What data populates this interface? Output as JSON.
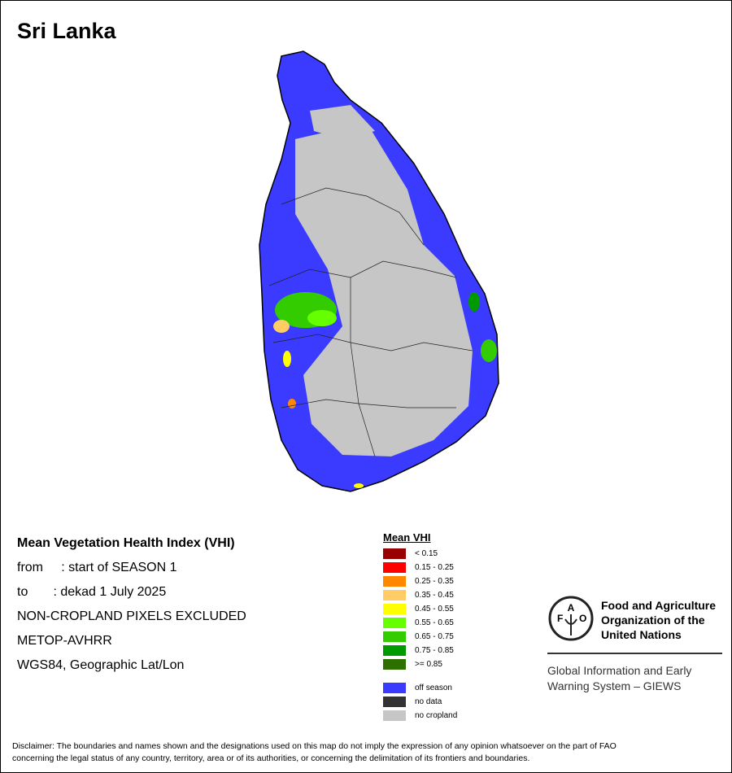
{
  "title": "Sri Lanka",
  "info": {
    "heading": "Mean Vegetation Health Index (VHI)",
    "from": "from     : start of SEASON 1",
    "to": "to       : dekad 1 July 2025",
    "mask": "NON-CROPLAND PIXELS EXCLUDED",
    "sensor": "METOP-AVHRR",
    "projection": "WGS84, Geographic Lat/Lon"
  },
  "legend": {
    "title": "Mean VHI",
    "classes": [
      {
        "label": "< 0.15",
        "color": "#990000"
      },
      {
        "label": "0.15 - 0.25",
        "color": "#ff0000"
      },
      {
        "label": "0.25 - 0.35",
        "color": "#ff8800"
      },
      {
        "label": "0.35 - 0.45",
        "color": "#ffcc66"
      },
      {
        "label": "0.45 - 0.55",
        "color": "#ffff00"
      },
      {
        "label": "0.55 - 0.65",
        "color": "#66ff00"
      },
      {
        "label": "0.65 - 0.75",
        "color": "#33cc00"
      },
      {
        "label": "0.75 - 0.85",
        "color": "#009900"
      },
      {
        "label": ">= 0.85",
        "color": "#2d7000"
      }
    ],
    "other": [
      {
        "label": "off season",
        "color": "#3b3bff"
      },
      {
        "label": "no data",
        "color": "#333333"
      },
      {
        "label": "no cropland",
        "color": "#c6c6c6"
      }
    ]
  },
  "org": {
    "name_line1": "Food and Agriculture",
    "name_line2": "Organization of the",
    "name_line3": "United Nations",
    "logo_text": "FAO FIAT PANIS",
    "giews_line1": "Global Information and Early",
    "giews_line2": "Warning System – GIEWS"
  },
  "disclaimer_line1": "Disclaimer: The boundaries and names shown and the designations used on this map do not imply the expression of any opinion whatsoever on the part of FAO",
  "disclaimer_line2": "concerning the legal status of any country, territory, area or of its authorities, or concerning the delimitation of its frontiers and boundaries."
}
